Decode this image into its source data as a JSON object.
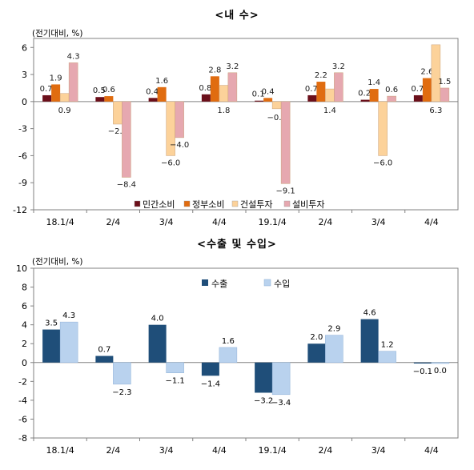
{
  "chart_data": [
    {
      "type": "bar",
      "title": "<내   수>",
      "unit_label": "(전기대비, %)",
      "categories": [
        "18.1/4",
        "2/4",
        "3/4",
        "4/4",
        "19.1/4",
        "2/4",
        "3/4",
        "4/4"
      ],
      "series": [
        {
          "name": "민간소비",
          "color": "#6b0f1a",
          "values": [
            0.7,
            0.5,
            0.4,
            0.8,
            0.1,
            0.7,
            0.2,
            0.7
          ]
        },
        {
          "name": "정부소비",
          "color": "#e06c10",
          "values": [
            1.9,
            0.6,
            1.6,
            2.8,
            0.4,
            2.2,
            1.4,
            2.6
          ]
        },
        {
          "name": "건설투자",
          "color": "#fcd29a",
          "values": [
            0.9,
            -2.5,
            -6.0,
            1.8,
            -0.8,
            1.4,
            -6.0,
            6.3
          ]
        },
        {
          "name": "설비투자",
          "color": "#e6a8b0",
          "values": [
            4.3,
            -8.4,
            -4.0,
            3.2,
            -9.1,
            3.2,
            0.6,
            1.5
          ]
        }
      ],
      "ylim": [
        -12,
        7
      ],
      "yticks": [
        "6",
        "3",
        "0",
        "-3",
        "-6",
        "-9",
        "-12"
      ],
      "legend_position": "bottom"
    },
    {
      "type": "bar",
      "title": "<수출 및 수입>",
      "unit_label": "(전기대비, %)",
      "categories": [
        "18.1/4",
        "2/4",
        "3/4",
        "4/4",
        "19.1/4",
        "2/4",
        "3/4",
        "4/4"
      ],
      "series": [
        {
          "name": "수출",
          "color": "#1f4e79",
          "values": [
            3.5,
            0.7,
            4.0,
            -1.4,
            -3.2,
            2.0,
            4.6,
            -0.1
          ]
        },
        {
          "name": "수입",
          "color": "#b9d2ee",
          "values": [
            4.3,
            -2.3,
            -1.1,
            1.6,
            -3.4,
            2.9,
            1.2,
            0.0
          ]
        }
      ],
      "ylim": [
        -8,
        10
      ],
      "yticks": [
        "10",
        "8",
        "6",
        "4",
        "2",
        "0",
        "-2",
        "-4",
        "-6",
        "-8"
      ],
      "legend_position": "top-center"
    }
  ]
}
